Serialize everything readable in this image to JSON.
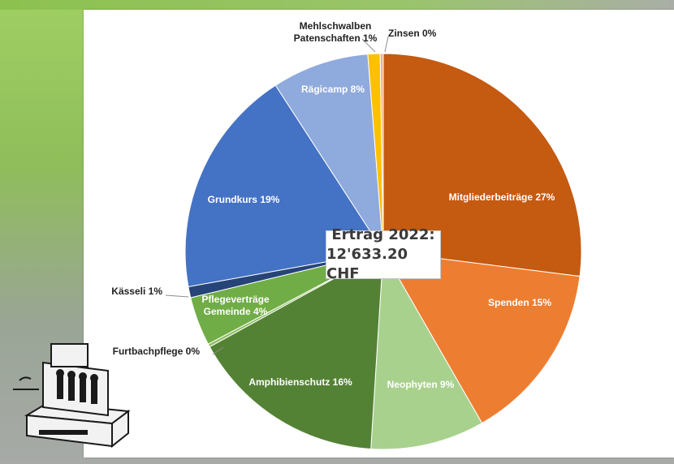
{
  "chart_data": {
    "type": "pie",
    "title": "Ertrag 2022:",
    "subtitle": "12'633.20 CHF",
    "slices": [
      {
        "label": "Mitgliederbeiträge 27%",
        "value": 27.0,
        "color": "#c55a11",
        "text_color": "#ffffff"
      },
      {
        "label": "Spenden 15%",
        "value": 14.7,
        "color": "#ed7d31",
        "text_color": "#ffffff"
      },
      {
        "label": "Neophyten 9%",
        "value": 9.3,
        "color": "#a9d18e",
        "text_color": "#ffffff"
      },
      {
        "label": "Amphibienschutz  16%",
        "value": 16.0,
        "color": "#548235",
        "text_color": "#ffffff"
      },
      {
        "label": "Furtbachpflege 0%",
        "value": 0.25,
        "color": "#8fbf63",
        "text_color": "#222222"
      },
      {
        "label": "Pflegeverträge Gemeinde 4%",
        "value": 4.0,
        "color": "#70ad47",
        "text_color": "#ffffff"
      },
      {
        "label": "Kässeli 1%",
        "value": 0.9,
        "color": "#264478",
        "text_color": "#222222"
      },
      {
        "label": "Grundkurs 19%",
        "value": 18.7,
        "color": "#4472c4",
        "text_color": "#ffffff"
      },
      {
        "label": "Rägicamp 8%",
        "value": 7.9,
        "color": "#8faadc",
        "text_color": "#ffffff"
      },
      {
        "label": "Mehlschwalben Patenschaften 1%",
        "value": 1.0,
        "color": "#ffc000",
        "text_color": "#222222"
      },
      {
        "label": "Zinsen 0%",
        "value": 0.25,
        "color": "#f4b183",
        "text_color": "#222222"
      }
    ]
  }
}
